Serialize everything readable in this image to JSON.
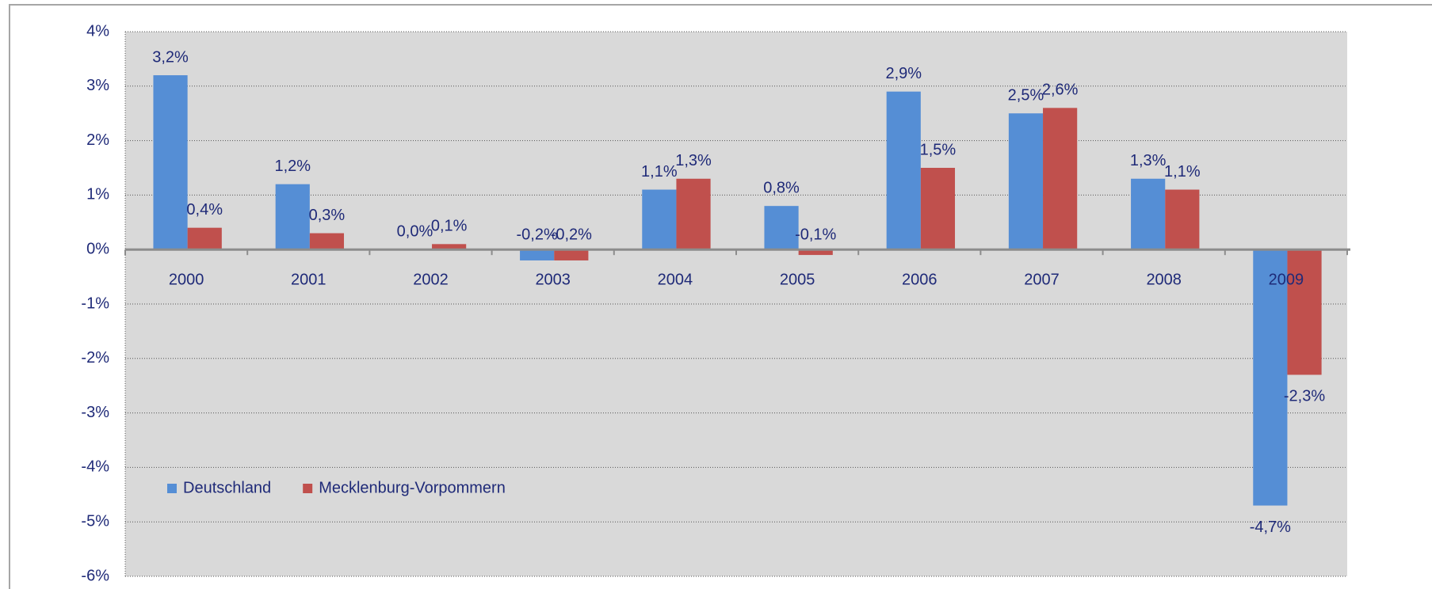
{
  "chart_data": {
    "type": "bar",
    "categories": [
      "2000",
      "2001",
      "2002",
      "2003",
      "2004",
      "2005",
      "2006",
      "2007",
      "2008",
      "2009"
    ],
    "series": [
      {
        "name": "Deutschland",
        "color": "#558ed5",
        "values": [
          3.2,
          1.2,
          0.0,
          -0.2,
          1.1,
          0.8,
          2.9,
          2.5,
          1.3,
          -4.7
        ],
        "value_labels": [
          "3,2%",
          "1,2%",
          "0,0%",
          "-0,2%",
          "1,1%",
          "0,8%",
          "2,9%",
          "2,5%",
          "1,3%",
          "-4,7%"
        ]
      },
      {
        "name": "Mecklenburg-Vorpommern",
        "color": "#c0504d",
        "values": [
          0.4,
          0.3,
          0.1,
          -0.2,
          1.3,
          -0.1,
          1.5,
          2.6,
          1.1,
          -2.3
        ],
        "value_labels": [
          "0,4%",
          "0,3%",
          "0,1%",
          "-0,2%",
          "1,3%",
          "-0,1%",
          "1,5%",
          "2,6%",
          "1,1%",
          "-2,3%"
        ]
      }
    ],
    "ylim": [
      -6,
      4
    ],
    "yticks": [
      {
        "value": 4,
        "label": "4%"
      },
      {
        "value": 3,
        "label": "3%"
      },
      {
        "value": 2,
        "label": "2%"
      },
      {
        "value": 1,
        "label": "1%"
      },
      {
        "value": 0,
        "label": "0%"
      },
      {
        "value": -1,
        "label": "-1%"
      },
      {
        "value": -2,
        "label": "-2%"
      },
      {
        "value": -3,
        "label": "-3%"
      },
      {
        "value": -4,
        "label": "-4%"
      },
      {
        "value": -5,
        "label": "-5%"
      },
      {
        "value": -6,
        "label": "-6%"
      }
    ],
    "grid": true,
    "legend": "lower left"
  }
}
